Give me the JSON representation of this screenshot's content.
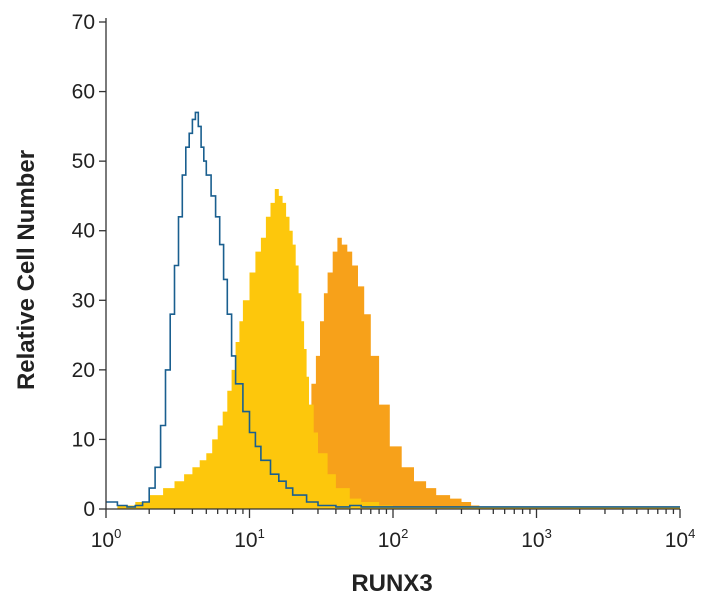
{
  "chart_data": {
    "type": "area",
    "xlabel": "RUNX3",
    "ylabel": "Relative Cell Number",
    "xscale": "log",
    "xlim": [
      1,
      10000
    ],
    "ylim": [
      0,
      70
    ],
    "x_ticks": [
      {
        "value": 1,
        "base": "10",
        "exp": "0"
      },
      {
        "value": 10,
        "base": "10",
        "exp": "1"
      },
      {
        "value": 100,
        "base": "10",
        "exp": "2"
      },
      {
        "value": 1000,
        "base": "10",
        "exp": "3"
      },
      {
        "value": 10000,
        "base": "10",
        "exp": "4"
      }
    ],
    "y_ticks": [
      0,
      10,
      20,
      30,
      40,
      50,
      60,
      70
    ],
    "grid": false,
    "legend": "none",
    "series": [
      {
        "color": "#f7a11a",
        "style": "filled",
        "points": [
          [
            1,
            0
          ],
          [
            5,
            0
          ],
          [
            8,
            0.5
          ],
          [
            12,
            1.5
          ],
          [
            16,
            3
          ],
          [
            20,
            6
          ],
          [
            23,
            10
          ],
          [
            25,
            14
          ],
          [
            27,
            18
          ],
          [
            29,
            22
          ],
          [
            31,
            27
          ],
          [
            33,
            31
          ],
          [
            35,
            34
          ],
          [
            38,
            37
          ],
          [
            41,
            39
          ],
          [
            44,
            38
          ],
          [
            48,
            37
          ],
          [
            52,
            35
          ],
          [
            57,
            32
          ],
          [
            63,
            28
          ],
          [
            70,
            22
          ],
          [
            80,
            15
          ],
          [
            95,
            9
          ],
          [
            115,
            6
          ],
          [
            140,
            4
          ],
          [
            170,
            3
          ],
          [
            200,
            2
          ],
          [
            250,
            1.5
          ],
          [
            300,
            1
          ],
          [
            350,
            0.5
          ],
          [
            400,
            0.3
          ],
          [
            10000,
            0.3
          ]
        ]
      },
      {
        "color": "#fdc70c",
        "style": "filled",
        "points": [
          [
            1,
            0
          ],
          [
            1.2,
            0.5
          ],
          [
            1.6,
            1
          ],
          [
            2,
            2
          ],
          [
            2.5,
            3
          ],
          [
            3,
            4
          ],
          [
            3.5,
            5
          ],
          [
            4,
            6
          ],
          [
            4.5,
            7
          ],
          [
            5,
            8
          ],
          [
            5.5,
            10
          ],
          [
            6,
            12
          ],
          [
            6.5,
            14
          ],
          [
            7,
            17
          ],
          [
            7.5,
            20
          ],
          [
            8,
            24
          ],
          [
            8.5,
            27
          ],
          [
            9,
            30
          ],
          [
            10,
            34
          ],
          [
            11,
            37
          ],
          [
            12,
            39
          ],
          [
            13,
            42
          ],
          [
            14,
            44
          ],
          [
            15,
            46
          ],
          [
            16,
            45
          ],
          [
            17,
            44
          ],
          [
            18,
            42
          ],
          [
            19,
            40
          ],
          [
            20,
            38
          ],
          [
            21,
            35
          ],
          [
            22,
            31
          ],
          [
            23,
            27
          ],
          [
            24,
            23
          ],
          [
            25,
            19
          ],
          [
            26,
            15
          ],
          [
            28,
            11
          ],
          [
            30,
            8
          ],
          [
            35,
            5
          ],
          [
            40,
            3
          ],
          [
            50,
            1.5
          ],
          [
            60,
            1
          ],
          [
            80,
            0.5
          ],
          [
            100,
            0.3
          ],
          [
            10000,
            0.3
          ]
        ]
      },
      {
        "color": "#1a5f8f",
        "style": "line",
        "points": [
          [
            1,
            1
          ],
          [
            1.2,
            0.5
          ],
          [
            1.4,
            0.3
          ],
          [
            1.6,
            0.5
          ],
          [
            1.8,
            1
          ],
          [
            2,
            3
          ],
          [
            2.2,
            6
          ],
          [
            2.4,
            12
          ],
          [
            2.6,
            20
          ],
          [
            2.8,
            28
          ],
          [
            3,
            35
          ],
          [
            3.2,
            42
          ],
          [
            3.4,
            48
          ],
          [
            3.6,
            52
          ],
          [
            3.8,
            54
          ],
          [
            4,
            56
          ],
          [
            4.2,
            57
          ],
          [
            4.4,
            55
          ],
          [
            4.6,
            52
          ],
          [
            4.8,
            50
          ],
          [
            5,
            48
          ],
          [
            5.4,
            45
          ],
          [
            5.8,
            42
          ],
          [
            6.2,
            38
          ],
          [
            6.6,
            33
          ],
          [
            7,
            28
          ],
          [
            7.5,
            22
          ],
          [
            8,
            18
          ],
          [
            9,
            14
          ],
          [
            10,
            11
          ],
          [
            11,
            9
          ],
          [
            12,
            7
          ],
          [
            14,
            5
          ],
          [
            16,
            4
          ],
          [
            18,
            3
          ],
          [
            20,
            2
          ],
          [
            25,
            1
          ],
          [
            30,
            0.5
          ],
          [
            40,
            0.3
          ],
          [
            50,
            0.5
          ],
          [
            60,
            0.3
          ],
          [
            100,
            0.3
          ],
          [
            10000,
            0.3
          ]
        ]
      }
    ]
  }
}
